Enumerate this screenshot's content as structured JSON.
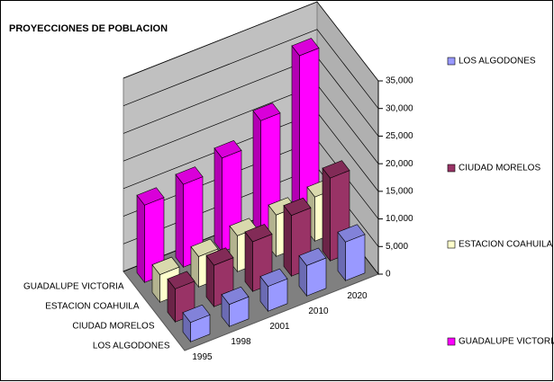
{
  "chart_data": {
    "type": "bar3d",
    "title": "PROYECCIONES DE POBLACION",
    "categories": [
      "1995",
      "1998",
      "2001",
      "2010",
      "2020"
    ],
    "series": [
      {
        "name": "LOS ALGODONES",
        "color": "#9999ff",
        "values": [
          3500,
          4000,
          4500,
          5500,
          7000
        ]
      },
      {
        "name": "CIUDAD MORELOS",
        "color": "#993366",
        "values": [
          6000,
          7500,
          9000,
          11000,
          15000
        ]
      },
      {
        "name": "ESTACION COAHUILA",
        "color": "#ffffcc",
        "values": [
          5000,
          5500,
          6500,
          7500,
          8000
        ]
      },
      {
        "name": "GUADALUPE VICTORIA",
        "color": "#ff00ff",
        "values": [
          14000,
          15000,
          17000,
          21000,
          30000
        ]
      }
    ],
    "ylim": [
      0,
      35000
    ],
    "yticks": [
      0,
      {
        "value": 5000,
        "label": "5,000"
      },
      {
        "value": 10000,
        "label": "10,000"
      },
      {
        "value": 15000,
        "label": "15,000"
      },
      {
        "value": 20000,
        "label": "20,000"
      },
      {
        "value": 25000,
        "label": "25,000"
      },
      {
        "value": 30000,
        "label": "30,000"
      },
      {
        "value": 35000,
        "label": "35,000"
      }
    ],
    "grid": true,
    "legend": "right"
  }
}
